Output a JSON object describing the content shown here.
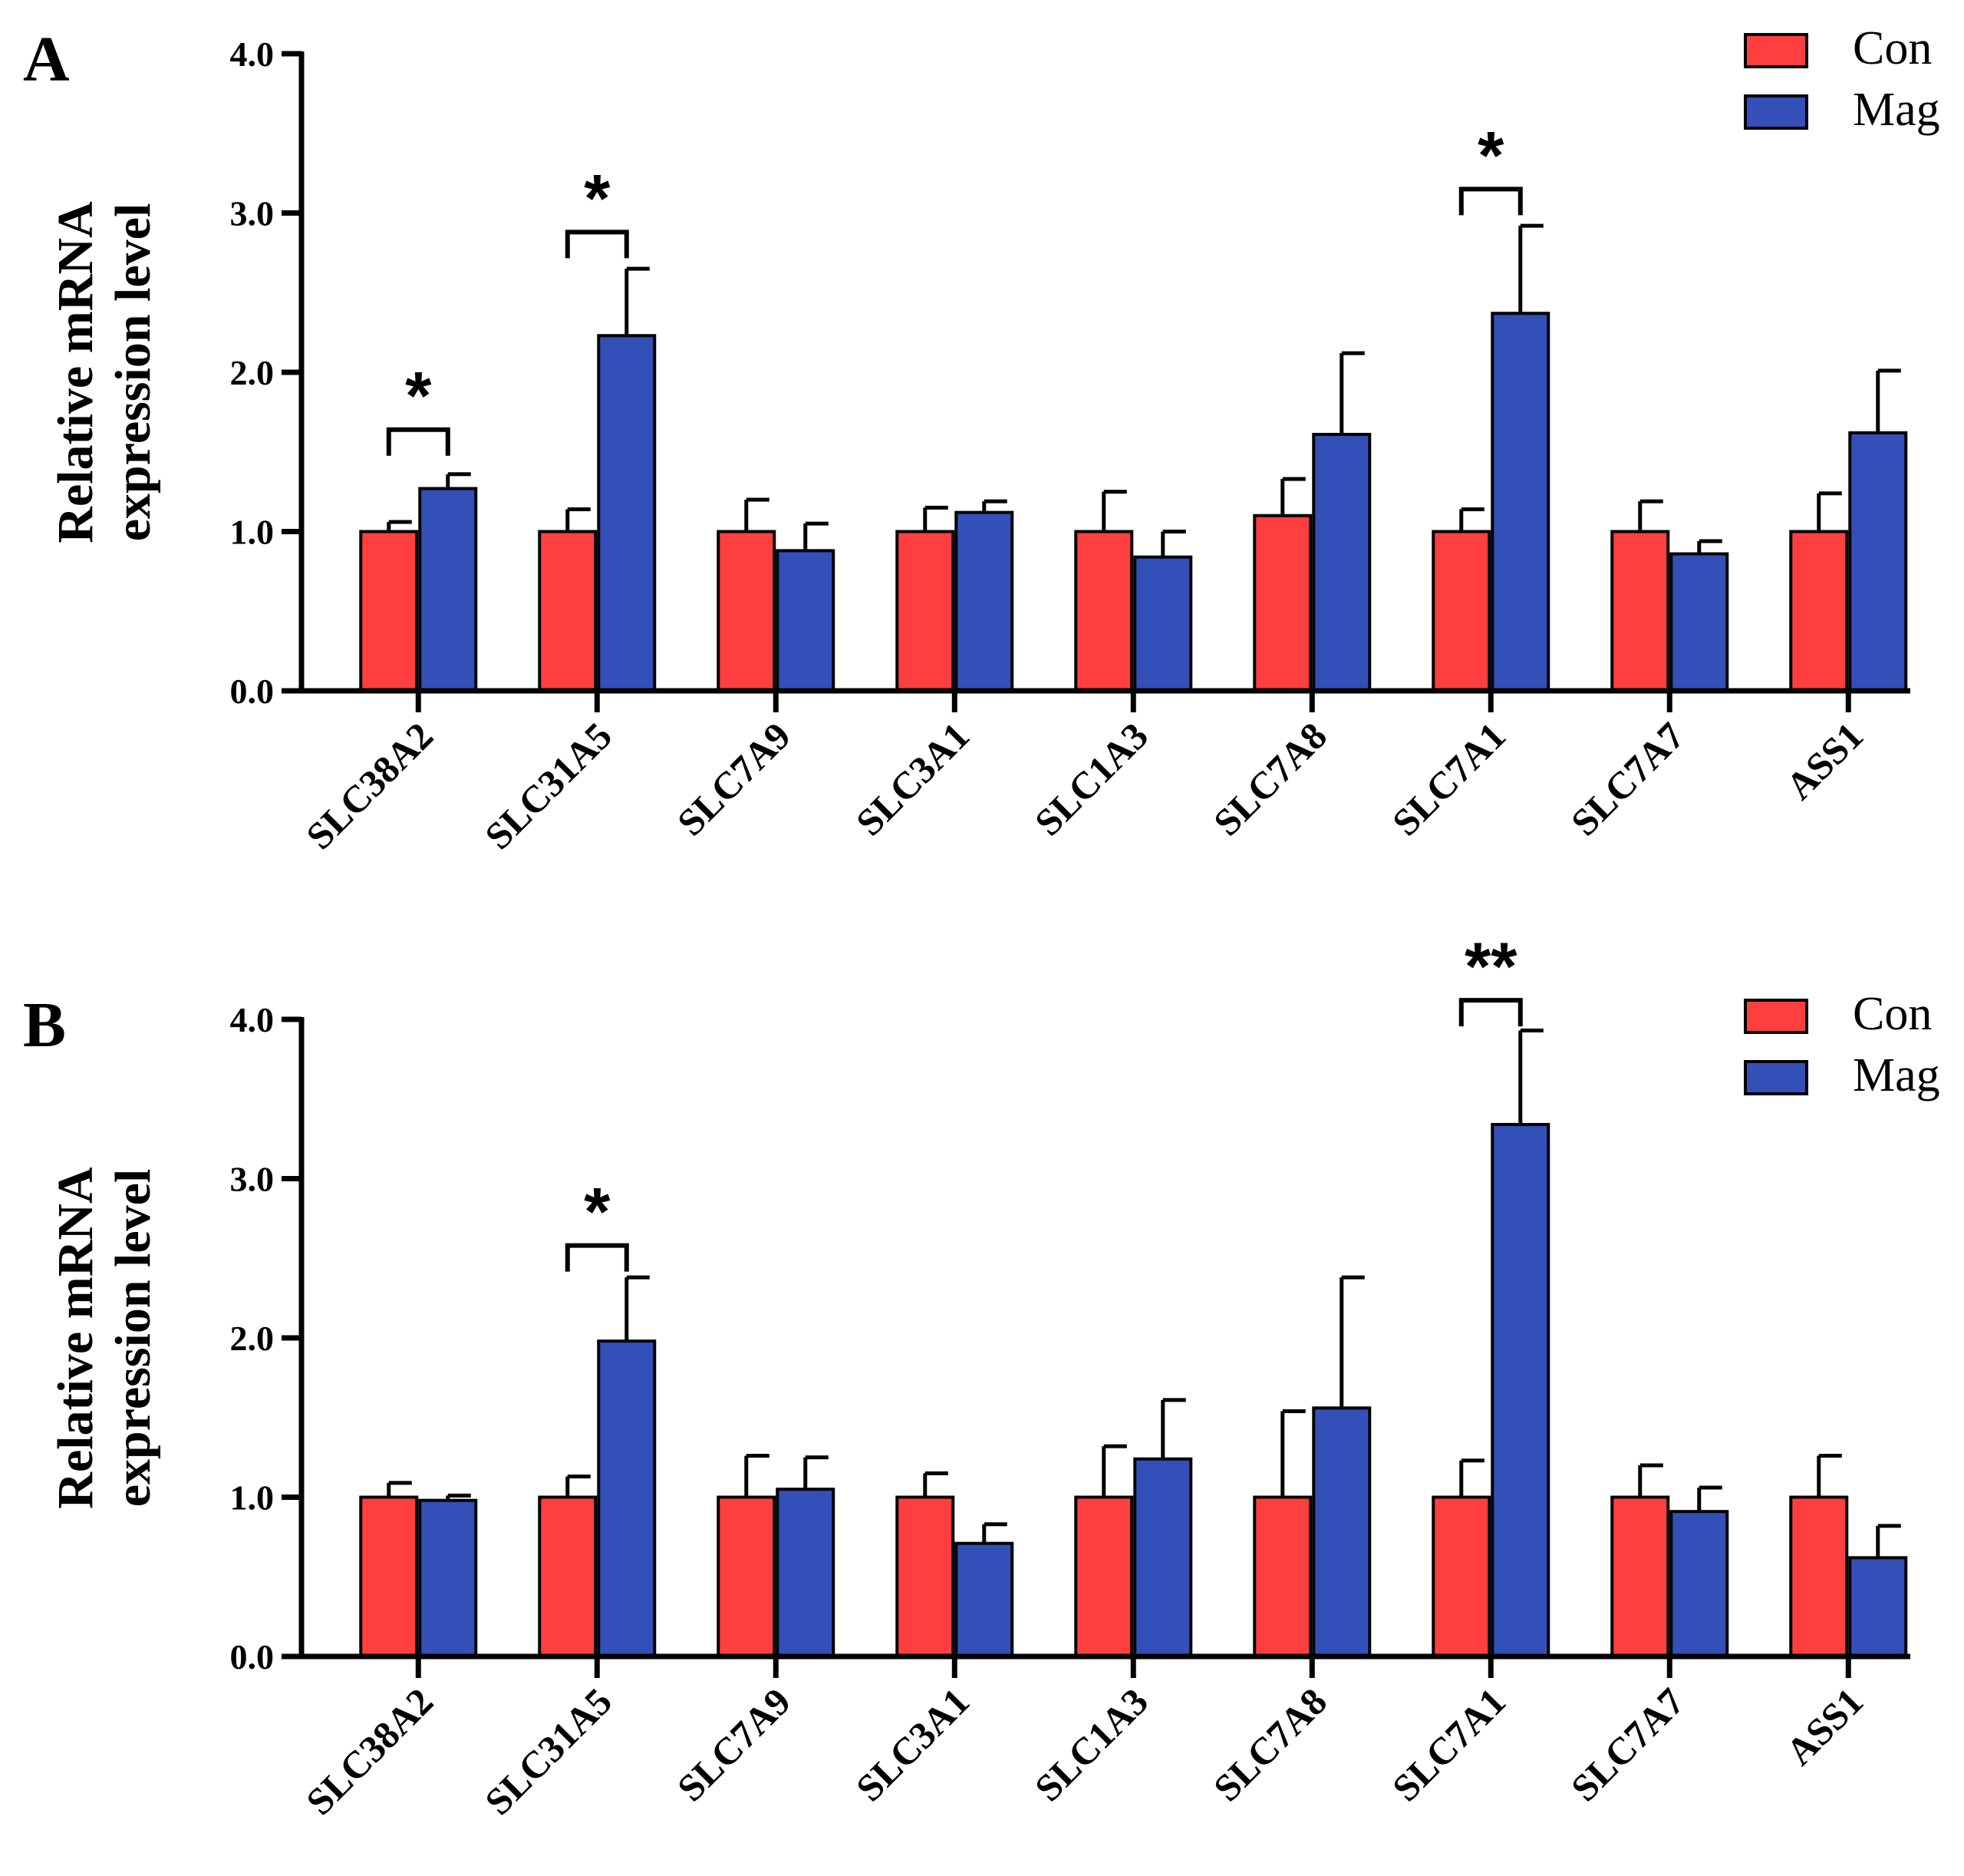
{
  "chart_data": [
    {
      "panel": "A",
      "type": "bar",
      "ylabel_line1": "Relative mRNA",
      "ylabel_line2": "expression level",
      "ylim": [
        0,
        4.0
      ],
      "yticks": [
        "0.0",
        "1.0",
        "2.0",
        "3.0",
        "4.0"
      ],
      "categories": [
        "SLC38A2",
        "SLC31A5",
        "SLC7A9",
        "SLC3A1",
        "SLC1A3",
        "SLC7A8",
        "SLC7A1",
        "SLC7A7",
        "ASS1"
      ],
      "series": [
        {
          "name": "Con",
          "color": "#ff3f3f",
          "values": [
            1.0,
            1.0,
            1.0,
            1.0,
            1.0,
            1.1,
            1.0,
            1.0,
            1.0
          ],
          "errors": [
            0.06,
            0.14,
            0.2,
            0.15,
            0.25,
            0.23,
            0.14,
            0.19,
            0.24
          ]
        },
        {
          "name": "Mag",
          "color": "#3350b8",
          "values": [
            1.27,
            2.23,
            0.88,
            1.12,
            0.84,
            1.61,
            2.37,
            0.86,
            1.62
          ],
          "errors": [
            0.09,
            0.42,
            0.17,
            0.07,
            0.16,
            0.51,
            0.55,
            0.08,
            0.39
          ]
        }
      ],
      "significance": [
        {
          "category": "SLC38A2",
          "label": "*",
          "level": 1.64
        },
        {
          "category": "SLC31A5",
          "label": "*",
          "level": 2.88
        },
        {
          "category": "SLC7A1",
          "label": "*",
          "level": 3.15
        }
      ]
    },
    {
      "panel": "B",
      "type": "bar",
      "ylabel_line1": "Relative mRNA",
      "ylabel_line2": "expression level",
      "ylim": [
        0,
        4.0
      ],
      "yticks": [
        "0.0",
        "1.0",
        "2.0",
        "3.0",
        "4.0"
      ],
      "categories": [
        "SLC38A2",
        "SLC31A5",
        "SLC7A9",
        "SLC3A1",
        "SLC1A3",
        "SLC7A8",
        "SLC7A1",
        "SLC7A7",
        "ASS1"
      ],
      "series": [
        {
          "name": "Con",
          "color": "#ff3f3f",
          "values": [
            1.0,
            1.0,
            1.0,
            1.0,
            1.0,
            1.0,
            1.0,
            1.0,
            1.0
          ],
          "errors": [
            0.09,
            0.13,
            0.26,
            0.15,
            0.32,
            0.54,
            0.23,
            0.2,
            0.26
          ]
        },
        {
          "name": "Mag",
          "color": "#3350b8",
          "values": [
            0.98,
            1.98,
            1.05,
            0.71,
            1.24,
            1.56,
            3.34,
            0.91,
            0.62
          ],
          "errors": [
            0.03,
            0.4,
            0.2,
            0.12,
            0.37,
            0.82,
            0.59,
            0.15,
            0.2
          ]
        }
      ],
      "significance": [
        {
          "category": "SLC31A5",
          "label": "*",
          "level": 2.58
        },
        {
          "category": "SLC7A1",
          "label": "**",
          "level": 4.12
        }
      ]
    }
  ]
}
